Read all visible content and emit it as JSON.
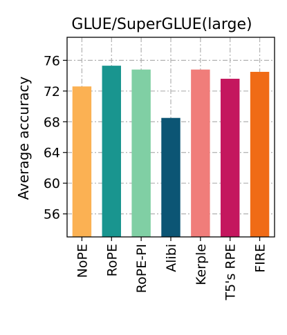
{
  "chart_data": {
    "type": "bar",
    "title": "GLUE/SuperGLUE(large)",
    "xlabel": "",
    "ylabel": "Average accuracy",
    "categories": [
      "NoPE",
      "RoPE",
      "RoPE-PI",
      "Alibi",
      "Kerple",
      "T5's RPE",
      "FIRE"
    ],
    "values": [
      72.6,
      75.3,
      74.8,
      68.5,
      74.8,
      73.6,
      74.5
    ],
    "colors": [
      "#fbb153",
      "#19958f",
      "#80cfa4",
      "#0c5574",
      "#f07d7a",
      "#c4175e",
      "#f06b16"
    ],
    "ylim": [
      53,
      79
    ],
    "yticks": [
      56,
      60,
      64,
      68,
      72,
      76
    ],
    "grid": true
  }
}
